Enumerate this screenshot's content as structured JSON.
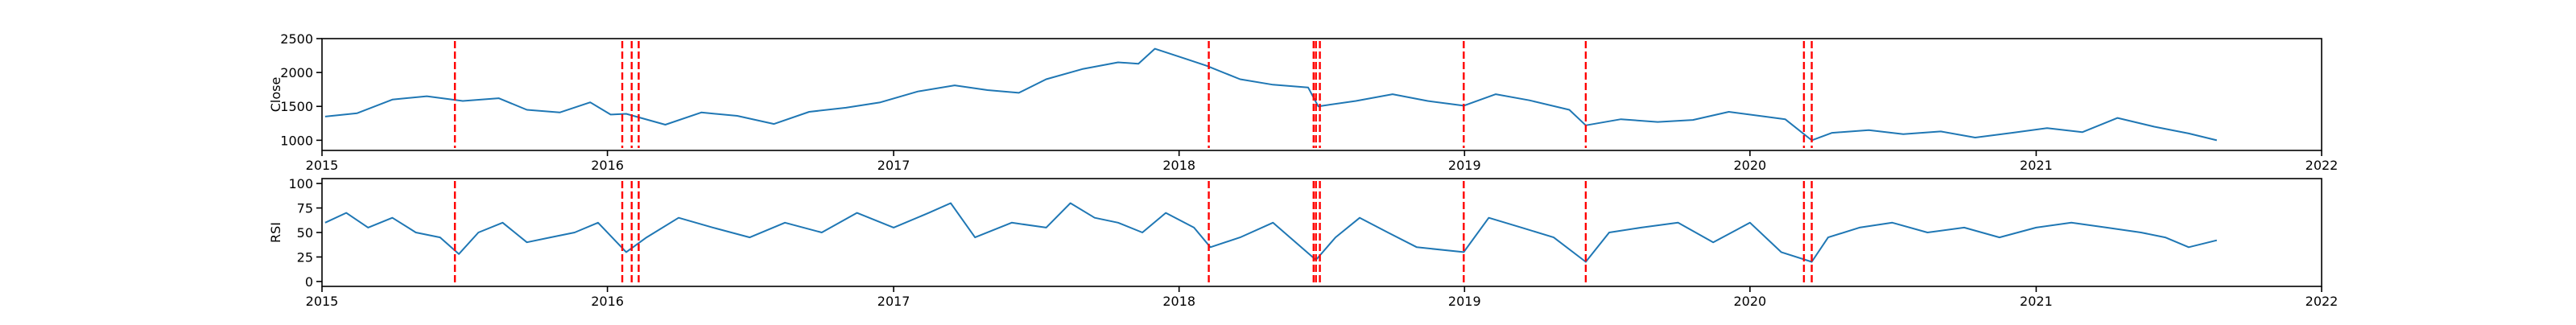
{
  "chart_data": [
    {
      "type": "line",
      "ylabel": "Close",
      "ylim": [
        850,
        2500
      ],
      "xlim": [
        "2015-01-01",
        "2022-01-01"
      ],
      "yticks": [
        1000,
        1500,
        2000,
        2500
      ],
      "xticks": [
        "2015",
        "2016",
        "2017",
        "2018",
        "2019",
        "2020",
        "2021",
        "2022"
      ],
      "grid": false,
      "series": [
        {
          "color": "#1f77b4",
          "x": [
            "2015-01-05",
            "2015-02-15",
            "2015-04-01",
            "2015-05-15",
            "2015-06-30",
            "2015-08-15",
            "2015-09-20",
            "2015-11-01",
            "2015-12-10",
            "2016-01-05",
            "2016-01-25",
            "2016-03-15",
            "2016-04-30",
            "2016-06-15",
            "2016-08-01",
            "2016-09-15",
            "2016-11-01",
            "2016-12-15",
            "2017-02-01",
            "2017-03-20",
            "2017-05-01",
            "2017-06-10",
            "2017-07-15",
            "2017-08-30",
            "2017-10-15",
            "2017-11-10",
            "2017-12-01",
            "2018-01-10",
            "2018-02-05",
            "2018-03-20",
            "2018-05-01",
            "2018-06-15",
            "2018-06-28",
            "2018-08-15",
            "2018-10-01",
            "2018-11-15",
            "2018-12-31",
            "2019-02-10",
            "2019-03-25",
            "2019-05-15",
            "2019-06-05",
            "2019-07-20",
            "2019-09-05",
            "2019-10-20",
            "2019-12-05",
            "2020-01-20",
            "2020-02-15",
            "2020-03-20",
            "2020-04-15",
            "2020-06-01",
            "2020-07-15",
            "2020-09-01",
            "2020-10-15",
            "2020-12-01",
            "2021-01-15",
            "2021-03-01",
            "2021-04-15",
            "2021-06-01",
            "2021-07-15",
            "2021-08-20"
          ],
          "values": [
            1350,
            1400,
            1600,
            1650,
            1580,
            1620,
            1450,
            1410,
            1560,
            1380,
            1390,
            1230,
            1410,
            1360,
            1240,
            1420,
            1480,
            1560,
            1720,
            1810,
            1740,
            1700,
            1900,
            2050,
            2150,
            2130,
            2350,
            2200,
            2100,
            1900,
            1820,
            1780,
            1500,
            1580,
            1680,
            1580,
            1510,
            1680,
            1590,
            1450,
            1220,
            1310,
            1270,
            1300,
            1420,
            1350,
            1310,
            1000,
            1110,
            1150,
            1090,
            1130,
            1040,
            1110,
            1180,
            1120,
            1330,
            1200,
            1100,
            1000
          ]
        }
      ],
      "vlines": [
        "2015-06-20",
        "2016-01-20",
        "2016-02-01",
        "2016-02-10",
        "2018-02-08",
        "2018-06-22",
        "2018-06-25",
        "2018-06-30",
        "2018-12-31",
        "2019-06-05",
        "2020-03-10",
        "2020-03-20"
      ]
    },
    {
      "type": "line",
      "ylabel": "RSI",
      "ylim": [
        -5,
        105
      ],
      "xlim": [
        "2015-01-01",
        "2022-01-01"
      ],
      "yticks": [
        0,
        25,
        50,
        75,
        100
      ],
      "xticks": [
        "2015",
        "2016",
        "2017",
        "2018",
        "2019",
        "2020",
        "2021",
        "2022"
      ],
      "grid": false,
      "series": [
        {
          "color": "#1f77b4",
          "x": [
            "2015-01-05",
            "2015-02-01",
            "2015-03-01",
            "2015-04-01",
            "2015-05-01",
            "2015-06-01",
            "2015-06-25",
            "2015-07-20",
            "2015-08-20",
            "2015-09-20",
            "2015-10-20",
            "2015-11-20",
            "2015-12-20",
            "2016-01-25",
            "2016-02-20",
            "2016-04-01",
            "2016-05-15",
            "2016-07-01",
            "2016-08-15",
            "2016-10-01",
            "2016-11-15",
            "2017-01-01",
            "2017-02-15",
            "2017-03-15",
            "2017-04-15",
            "2017-06-01",
            "2017-07-15",
            "2017-08-15",
            "2017-09-15",
            "2017-10-15",
            "2017-11-15",
            "2017-12-15",
            "2018-01-20",
            "2018-02-10",
            "2018-03-20",
            "2018-05-01",
            "2018-06-25",
            "2018-07-20",
            "2018-08-20",
            "2018-09-25",
            "2018-11-01",
            "2018-12-31",
            "2019-02-01",
            "2019-03-15",
            "2019-04-25",
            "2019-06-05",
            "2019-07-05",
            "2019-08-15",
            "2019-10-01",
            "2019-11-15",
            "2020-01-01",
            "2020-02-10",
            "2020-03-20",
            "2020-04-10",
            "2020-05-20",
            "2020-07-01",
            "2020-08-15",
            "2020-10-01",
            "2020-11-15",
            "2021-01-01",
            "2021-02-15",
            "2021-04-01",
            "2021-05-15",
            "2021-06-15",
            "2021-07-15",
            "2021-08-20"
          ],
          "values": [
            60,
            70,
            55,
            65,
            50,
            45,
            28,
            50,
            60,
            40,
            45,
            50,
            60,
            30,
            45,
            65,
            55,
            45,
            60,
            50,
            70,
            55,
            70,
            80,
            45,
            60,
            55,
            80,
            65,
            60,
            50,
            70,
            55,
            35,
            45,
            60,
            22,
            45,
            65,
            50,
            35,
            30,
            65,
            55,
            45,
            20,
            50,
            55,
            60,
            40,
            60,
            30,
            20,
            45,
            55,
            60,
            50,
            55,
            45,
            55,
            60,
            55,
            50,
            45,
            35,
            42
          ]
        }
      ],
      "vlines": [
        "2015-06-20",
        "2016-01-20",
        "2016-02-01",
        "2016-02-10",
        "2018-02-08",
        "2018-06-22",
        "2018-06-25",
        "2018-06-30",
        "2018-12-31",
        "2019-06-05",
        "2020-03-10",
        "2020-03-20"
      ]
    }
  ]
}
